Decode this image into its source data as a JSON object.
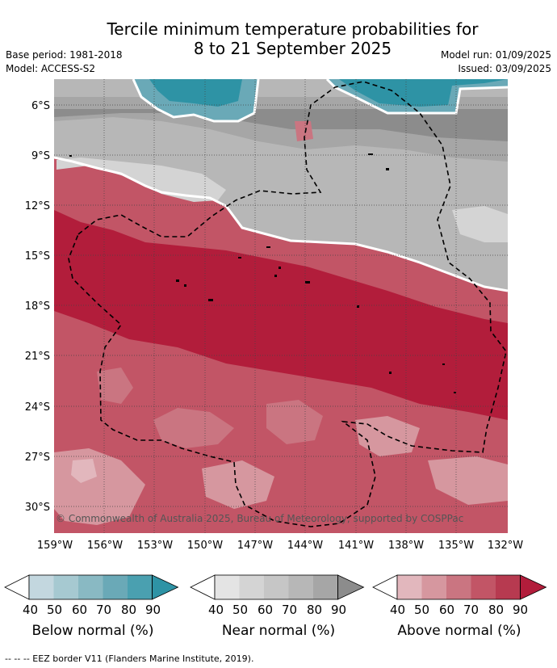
{
  "title_line1": "Tercile minimum temperature probabilities for",
  "title_line2": "8 to 21 September 2025",
  "base_period": "Base period: 1981-2018",
  "model": "Model: ACCESS-S2",
  "model_run": "Model run: 01/09/2025",
  "issued": "Issued: 03/09/2025",
  "lat_ticks": [
    "6°S",
    "9°S",
    "12°S",
    "15°S",
    "18°S",
    "21°S",
    "24°S",
    "27°S",
    "30°S"
  ],
  "lon_ticks": [
    "159°W",
    "156°W",
    "153°W",
    "150°W",
    "147°W",
    "144°W",
    "141°W",
    "138°W",
    "135°W",
    "132°W"
  ],
  "copyright": "© Commonwealth of Australia 2025, Bureau of Meteorology, supported by COSPPac",
  "colorbars": [
    {
      "label": "Below normal (%)",
      "ticks": [
        "40",
        "50",
        "60",
        "70",
        "80",
        "90"
      ],
      "colors": [
        "#c3d7df",
        "#a6c9d1",
        "#89b9c3",
        "#6aa9b7",
        "#4aa0b0",
        "#2e93a5"
      ]
    },
    {
      "label": "Near normal (%)",
      "ticks": [
        "40",
        "50",
        "60",
        "70",
        "80",
        "90"
      ],
      "colors": [
        "#e4e4e4",
        "#d4d4d4",
        "#c6c6c6",
        "#b7b7b7",
        "#a6a6a6",
        "#8c8c8c"
      ]
    },
    {
      "label": "Above normal (%)",
      "ticks": [
        "40",
        "50",
        "60",
        "70",
        "80",
        "90"
      ],
      "colors": [
        "#e2b7bd",
        "#d6979f",
        "#ca7581",
        "#c25566",
        "#b73a50",
        "#b21d3b"
      ]
    }
  ],
  "footer": "--  --  -- EEZ border V11 (Flanders Marine Institute, 2019)."
}
